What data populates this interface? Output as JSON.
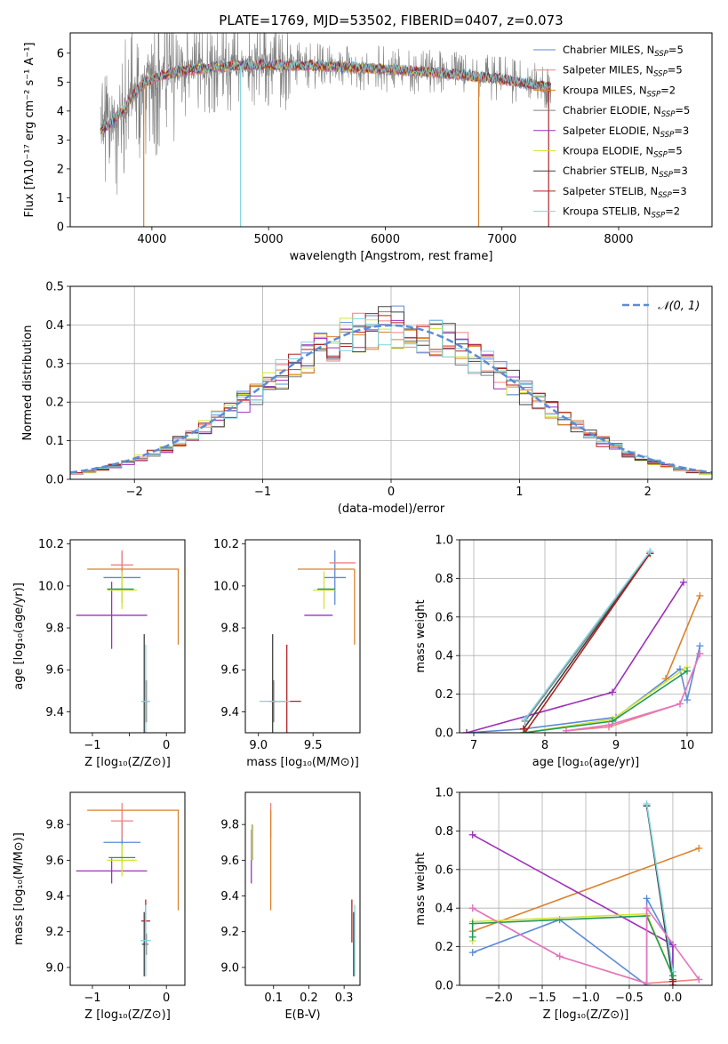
{
  "figure": {
    "title": "PLATE=1769, MJD=53502, FIBERID=0407, z=0.073"
  },
  "chart_data": [
    {
      "id": "spectrum",
      "type": "line",
      "xlabel": "wavelength [Angstrom, rest frame]",
      "ylabel": "Flux [fλ10⁻¹⁷ erg cm⁻² s⁻¹ A⁻¹]",
      "xlim": [
        3300,
        8800
      ],
      "ylim": [
        0,
        6.7
      ],
      "xticks": [
        4000,
        5000,
        6000,
        7000,
        8000
      ],
      "yticks": [
        0,
        1,
        2,
        3,
        4,
        5,
        6
      ],
      "grid": false,
      "legend_position": "right",
      "data_range": [
        3560,
        7420
      ],
      "continuum_x": [
        3560,
        3650,
        3750,
        3850,
        3950,
        4100,
        4300,
        4600,
        5000,
        5500,
        6000,
        6500,
        7000,
        7420
      ],
      "continuum_y": [
        3.3,
        3.6,
        4.0,
        4.6,
        5.0,
        5.25,
        5.4,
        5.55,
        5.6,
        5.55,
        5.45,
        5.3,
        5.1,
        4.8
      ],
      "spikes_down": [
        [
          4760,
          0.0
        ],
        [
          3930,
          0.0
        ],
        [
          6800,
          0.0
        ],
        [
          7400,
          0.0
        ]
      ],
      "series": [
        {
          "name": "Chabrier MILES, N",
          "sub": "SSP",
          "suffix": "=5",
          "color": "#5b8bd6"
        },
        {
          "name": "Salpeter MILES, N",
          "sub": "SSP",
          "suffix": "=5",
          "color": "#f08080"
        },
        {
          "name": "Kroupa MILES, N",
          "sub": "SSP",
          "suffix": "=2",
          "color": "#d9822b"
        },
        {
          "name": "Chabrier ELODIE, N",
          "sub": "SSP",
          "suffix": "=5",
          "color": "#808080"
        },
        {
          "name": "Salpeter ELODIE, N",
          "sub": "SSP",
          "suffix": "=3",
          "color": "#9c31b9"
        },
        {
          "name": "Kroupa ELODIE, N",
          "sub": "SSP",
          "suffix": "=5",
          "color": "#d4e33a"
        },
        {
          "name": "Chabrier STELIB, N",
          "sub": "SSP",
          "suffix": "=3",
          "color": "#404040"
        },
        {
          "name": "Salpeter STELIB, N",
          "sub": "SSP",
          "suffix": "=3",
          "color": "#b22222"
        },
        {
          "name": "Kroupa STELIB, N",
          "sub": "SSP",
          "suffix": "=2",
          "color": "#7fd3e0"
        }
      ]
    },
    {
      "id": "residuals",
      "type": "line",
      "xlabel": "(data-model)/error",
      "ylabel": "Normed distribution",
      "xlim": [
        -2.5,
        2.5
      ],
      "ylim": [
        0,
        0.5
      ],
      "xticks": [
        -2,
        -1,
        0,
        1,
        2
      ],
      "xtick_labels": [
        "−2",
        "−1",
        "0",
        "1",
        "2"
      ],
      "yticks": [
        0.0,
        0.1,
        0.2,
        0.3,
        0.4,
        0.5
      ],
      "ytick_labels": [
        "0.0",
        "0.1",
        "0.2",
        "0.3",
        "0.4",
        "0.5"
      ],
      "grid": true,
      "legend": "𝒩(0, 1)",
      "legend_position": "upper right",
      "gaussian_color": "#5b8bd6",
      "bin_width": 0.1,
      "hist_colors": [
        "#5b8bd6",
        "#f08080",
        "#d9822b",
        "#808080",
        "#9c31b9",
        "#d4e33a",
        "#404040",
        "#b22222",
        "#7fd3e0"
      ]
    },
    {
      "id": "age_vs_Z",
      "type": "scatter",
      "xlabel": "Z [log₁₀(Z/Z⊙)]",
      "ylabel": "age  [log₁₀(age/yr)]",
      "xlim": [
        -1.3,
        0.25
      ],
      "ylim": [
        9.3,
        10.22
      ],
      "xticks": [
        -1,
        -0.5,
        0
      ],
      "xtick_labels": [
        "−1",
        "",
        "0"
      ],
      "yticks": [
        9.4,
        9.6,
        9.8,
        10.0,
        10.2
      ],
      "ytick_labels": [
        "9.4",
        "9.6",
        "9.8",
        "10.0",
        "10.2"
      ],
      "grid": false,
      "points": [
        {
          "color": "#5b8bd6",
          "x": -0.6,
          "xerr": 0.25,
          "y": 10.04,
          "yerr": 0.12
        },
        {
          "color": "#f08080",
          "x": -0.6,
          "xerr": 0.15,
          "y": 10.1,
          "yerr": 0.07
        },
        {
          "color": "#d9822b",
          "x": -0.45,
          "xerr": 0.62,
          "y": 10.08,
          "yerr": 0.0
        },
        {
          "color": "#d9822b",
          "x": 0.16,
          "xerr": 0.0,
          "y": 9.9,
          "yerr": 0.18
        },
        {
          "color": "#808080",
          "x": -0.27,
          "xerr": 0.03,
          "y": 9.45,
          "yerr": 0.1
        },
        {
          "color": "#9c31b9",
          "x": -0.74,
          "xerr": 0.48,
          "y": 9.86,
          "yerr": 0.16
        },
        {
          "color": "#d4e33a",
          "x": -0.6,
          "xerr": 0.2,
          "y": 9.98,
          "yerr": 0.09
        },
        {
          "color": "#404040",
          "x": -0.3,
          "xerr": 0.03,
          "y": 9.45,
          "yerr": 0.32
        },
        {
          "color": "#b22222",
          "x": -0.28,
          "xerr": 0.02,
          "y": 9.45,
          "yerr": 0.1
        },
        {
          "color": "#7fd3e0",
          "x": -0.28,
          "xerr": 0.06,
          "y": 9.45,
          "yerr": 0.27
        },
        {
          "color": "#1f9a55",
          "x": -0.62,
          "xerr": 0.18,
          "y": 9.985,
          "yerr": 0.0
        }
      ]
    },
    {
      "id": "age_vs_mass",
      "type": "scatter",
      "xlabel": "mass [log₁₀(M/M⊙)]",
      "ylabel": "",
      "xlim": [
        8.88,
        9.93
      ],
      "ylim": [
        9.3,
        10.22
      ],
      "xticks": [
        9.0,
        9.5
      ],
      "xtick_labels": [
        "9.0",
        "9.5"
      ],
      "yticks": [
        9.4,
        9.6,
        9.8,
        10.0,
        10.2
      ],
      "ytick_labels": [
        "9.4",
        "9.6",
        "9.8",
        "10.0",
        "10.2"
      ],
      "grid": false,
      "points": [
        {
          "color": "#5b8bd6",
          "x": 9.7,
          "xerr": 0.1,
          "y": 10.04,
          "yerr": 0.13
        },
        {
          "color": "#f08080",
          "x": 9.77,
          "xerr": 0.12,
          "y": 10.11,
          "yerr": 0.0
        },
        {
          "color": "#d9822b",
          "x": 9.62,
          "xerr": 0.26,
          "y": 10.08,
          "yerr": 0.0
        },
        {
          "color": "#d9822b",
          "x": 9.88,
          "xerr": 0.0,
          "y": 9.9,
          "yerr": 0.18
        },
        {
          "color": "#808080",
          "x": 9.14,
          "xerr": 0.02,
          "y": 9.45,
          "yerr": 0.1
        },
        {
          "color": "#9c31b9",
          "x": 9.55,
          "xerr": 0.13,
          "y": 9.86,
          "yerr": 0.0
        },
        {
          "color": "#d4e33a",
          "x": 9.6,
          "xerr": 0.1,
          "y": 9.98,
          "yerr": 0.09
        },
        {
          "color": "#404040",
          "x": 9.13,
          "xerr": 0.03,
          "y": 9.45,
          "yerr": 0.32
        },
        {
          "color": "#b22222",
          "x": 9.26,
          "xerr": 0.13,
          "y": 9.45,
          "yerr": 0.27
        },
        {
          "color": "#7fd3e0",
          "x": 9.15,
          "xerr": 0.14,
          "y": 9.45,
          "yerr": 0.0
        },
        {
          "color": "#1f9a55",
          "x": 9.62,
          "xerr": 0.08,
          "y": 9.985,
          "yerr": 0.0
        }
      ]
    },
    {
      "id": "weight_vs_age",
      "type": "line",
      "xlabel": "age  [log₁₀(age/yr)]",
      "ylabel": "mass weight",
      "xlim": [
        6.8,
        10.35
      ],
      "ylim": [
        0,
        1.0
      ],
      "xticks": [
        7,
        8,
        9,
        10
      ],
      "xtick_labels": [
        "7",
        "8",
        "9",
        "10"
      ],
      "yticks": [
        0.0,
        0.2,
        0.4,
        0.6,
        0.8,
        1.0
      ],
      "ytick_labels": [
        "0.0",
        "0.2",
        "0.4",
        "0.6",
        "0.8",
        "1.0"
      ],
      "grid": true,
      "series": [
        {
          "color": "#5b8bd6",
          "x": [
            6.9,
            7.7,
            9.0,
            9.9,
            10.0,
            10.18
          ],
          "y": [
            0.0,
            0.02,
            0.08,
            0.33,
            0.17,
            0.45
          ]
        },
        {
          "color": "#f08080",
          "x": [
            8.3,
            8.9,
            9.9,
            10.18
          ],
          "y": [
            0.01,
            0.03,
            0.15,
            0.41
          ]
        },
        {
          "color": "#d9822b",
          "x": [
            9.7,
            10.18
          ],
          "y": [
            0.28,
            0.71
          ]
        },
        {
          "color": "#808080",
          "x": [
            7.72,
            9.48
          ],
          "y": [
            0.06,
            0.93
          ]
        },
        {
          "color": "#9c31b9",
          "x": [
            6.9,
            8.95,
            9.95
          ],
          "y": [
            0.0,
            0.21,
            0.78
          ]
        },
        {
          "color": "#d4e33a",
          "x": [
            7.7,
            8.95,
            10.0
          ],
          "y": [
            0.0,
            0.07,
            0.34
          ]
        },
        {
          "color": "#404040",
          "x": [
            7.7,
            9.48
          ],
          "y": [
            0.02,
            0.93
          ]
        },
        {
          "color": "#b22222",
          "x": [
            7.7,
            7.72,
            9.48
          ],
          "y": [
            0.02,
            0.0,
            0.93
          ]
        },
        {
          "color": "#7fd3e0",
          "x": [
            7.72,
            9.48
          ],
          "y": [
            0.07,
            0.94
          ]
        },
        {
          "color": "#1f9a55",
          "x": [
            7.7,
            8.95,
            10.0
          ],
          "y": [
            0.0,
            0.06,
            0.32
          ]
        },
        {
          "color": "#e377c2",
          "x": [
            8.3,
            8.9,
            9.9,
            10.18
          ],
          "y": [
            0.01,
            0.04,
            0.15,
            0.41
          ]
        }
      ]
    },
    {
      "id": "mass_vs_Z",
      "type": "scatter",
      "xlabel": "Z [log₁₀(Z/Z⊙)]",
      "ylabel": "mass [log₁₀(M/M⊙)]",
      "xlim": [
        -1.3,
        0.25
      ],
      "ylim": [
        8.9,
        9.98
      ],
      "xticks": [
        -1,
        -0.5,
        0
      ],
      "xtick_labels": [
        "−1",
        "",
        "0"
      ],
      "yticks": [
        9.0,
        9.2,
        9.4,
        9.6,
        9.8
      ],
      "ytick_labels": [
        "9.0",
        "9.2",
        "9.4",
        "9.6",
        "9.8"
      ],
      "grid": false,
      "points": [
        {
          "color": "#5b8bd6",
          "x": -0.6,
          "xerr": 0.25,
          "y": 9.7,
          "yerr": 0.12
        },
        {
          "color": "#f08080",
          "x": -0.6,
          "xerr": 0.15,
          "y": 9.82,
          "yerr": 0.1
        },
        {
          "color": "#d9822b",
          "x": -0.45,
          "xerr": 0.62,
          "y": 9.88,
          "yerr": 0.0
        },
        {
          "color": "#d9822b",
          "x": 0.16,
          "xerr": 0.0,
          "y": 9.6,
          "yerr": 0.28
        },
        {
          "color": "#808080",
          "x": -0.27,
          "xerr": 0.03,
          "y": 9.13,
          "yerr": 0.06
        },
        {
          "color": "#9c31b9",
          "x": -0.74,
          "xerr": 0.48,
          "y": 9.54,
          "yerr": 0.07
        },
        {
          "color": "#d4e33a",
          "x": -0.6,
          "xerr": 0.2,
          "y": 9.6,
          "yerr": 0.09
        },
        {
          "color": "#404040",
          "x": -0.3,
          "xerr": 0.03,
          "y": 9.13,
          "yerr": 0.18
        },
        {
          "color": "#b22222",
          "x": -0.28,
          "xerr": 0.06,
          "y": 9.26,
          "yerr": 0.12
        },
        {
          "color": "#7fd3e0",
          "x": -0.28,
          "xerr": 0.07,
          "y": 9.15,
          "yerr": 0.2
        },
        {
          "color": "#1f9a55",
          "x": -0.6,
          "xerr": 0.18,
          "y": 9.615,
          "yerr": 0.0
        }
      ]
    },
    {
      "id": "mass_vs_ebv",
      "type": "scatter",
      "xlabel": "E(B-V)",
      "ylabel": "",
      "xlim": [
        0.02,
        0.345
      ],
      "ylim": [
        8.9,
        9.98
      ],
      "xticks": [
        0.1,
        0.2,
        0.3
      ],
      "xtick_labels": [
        "0.1",
        "0.2",
        "0.3"
      ],
      "yticks": [
        9.0,
        9.2,
        9.4,
        9.6,
        9.8
      ],
      "ytick_labels": [
        "9.0",
        "9.2",
        "9.4",
        "9.6",
        "9.8"
      ],
      "grid": false,
      "points": [
        {
          "color": "#5b8bd6",
          "x": 0.038,
          "xerr": 0.0,
          "y": 9.7,
          "yerr": 0.08
        },
        {
          "color": "#f08080",
          "x": 0.092,
          "xerr": 0.0,
          "y": 9.82,
          "yerr": 0.1
        },
        {
          "color": "#d9822b",
          "x": 0.092,
          "xerr": 0.0,
          "y": 9.6,
          "yerr": 0.28
        },
        {
          "color": "#808080",
          "x": 0.04,
          "xerr": 0.0,
          "y": 9.7,
          "yerr": 0.1
        },
        {
          "color": "#9c31b9",
          "x": 0.037,
          "xerr": 0.0,
          "y": 9.62,
          "yerr": 0.15
        },
        {
          "color": "#d4e33a",
          "x": 0.038,
          "xerr": 0.0,
          "y": 9.7,
          "yerr": 0.1
        },
        {
          "color": "#404040",
          "x": 0.327,
          "xerr": 0.0,
          "y": 9.13,
          "yerr": 0.18
        },
        {
          "color": "#b22222",
          "x": 0.322,
          "xerr": 0.0,
          "y": 9.26,
          "yerr": 0.12
        },
        {
          "color": "#7fd3e0",
          "x": 0.33,
          "xerr": 0.0,
          "y": 9.15,
          "yerr": 0.2
        }
      ]
    },
    {
      "id": "weight_vs_Z",
      "type": "line",
      "xlabel": "Z [log₁₀(Z/Z⊙)]",
      "ylabel": "mass weight",
      "xlim": [
        -2.45,
        0.45
      ],
      "ylim": [
        0,
        1.0
      ],
      "xticks": [
        -2.0,
        -1.5,
        -1.0,
        -0.5,
        0.0
      ],
      "xtick_labels": [
        "−2.0",
        "−1.5",
        "−1.0",
        "−0.5",
        "0.0"
      ],
      "yticks": [
        0.0,
        0.2,
        0.4,
        0.6,
        0.8,
        1.0
      ],
      "ytick_labels": [
        "0.0",
        "0.2",
        "0.4",
        "0.6",
        "0.8",
        "1.0"
      ],
      "grid": true,
      "series": [
        {
          "color": "#5b8bd6",
          "x": [
            -2.3,
            -1.3,
            -0.3,
            -0.3,
            0.0,
            0.0
          ],
          "y": [
            0.17,
            0.34,
            0.0,
            0.45,
            0.2,
            0.0
          ]
        },
        {
          "color": "#f08080",
          "x": [
            -2.3,
            -1.3,
            -0.3,
            0.3
          ],
          "y": [
            0.4,
            0.15,
            0.01,
            0.03
          ]
        },
        {
          "color": "#d9822b",
          "x": [
            -2.3,
            0.3
          ],
          "y": [
            0.28,
            0.71
          ]
        },
        {
          "color": "#808080",
          "x": [
            -0.3,
            0.0
          ],
          "y": [
            0.93,
            0.05
          ]
        },
        {
          "color": "#9c31b9",
          "x": [
            -2.3,
            0.0,
            0.0
          ],
          "y": [
            0.78,
            0.21,
            0.0
          ]
        },
        {
          "color": "#d4e33a",
          "x": [
            -2.3,
            -2.3,
            -0.3,
            0.0
          ],
          "y": [
            0.23,
            0.33,
            0.37,
            0.05
          ]
        },
        {
          "color": "#404040",
          "x": [
            -0.3,
            0.0
          ],
          "y": [
            0.93,
            0.02
          ]
        },
        {
          "color": "#b22222",
          "x": [
            0.0,
            0.0
          ],
          "y": [
            0.0,
            0.03
          ]
        },
        {
          "color": "#7fd3e0",
          "x": [
            -0.3,
            0.0
          ],
          "y": [
            0.94,
            0.07
          ]
        },
        {
          "color": "#1f9a55",
          "x": [
            -2.3,
            -2.3,
            -0.3,
            0.0
          ],
          "y": [
            0.25,
            0.32,
            0.36,
            0.05
          ]
        },
        {
          "color": "#e377c2",
          "x": [
            -2.3,
            -1.3,
            -0.3,
            -0.3,
            0.3
          ],
          "y": [
            0.4,
            0.15,
            0.01,
            0.4,
            0.03
          ]
        }
      ]
    }
  ]
}
